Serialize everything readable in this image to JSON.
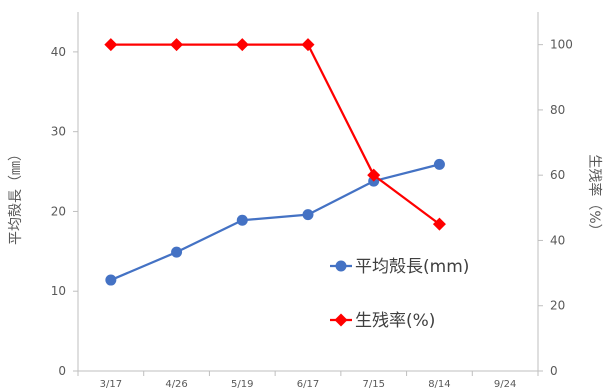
{
  "chart_data": {
    "type": "line",
    "categories": [
      "3/17",
      "4/26",
      "5/19",
      "6/17",
      "7/15",
      "8/14",
      "9/24"
    ],
    "y_left": {
      "label": "平均殻長（㎜）",
      "ylim": [
        0,
        45
      ],
      "ticks": [
        0,
        10,
        20,
        30,
        40
      ]
    },
    "y_right": {
      "label": "生残率（%）",
      "ylim": [
        0,
        110
      ],
      "ticks": [
        0,
        20,
        40,
        60,
        80,
        100
      ]
    },
    "series": [
      {
        "name": "平均殻長(mm)",
        "axis": "left",
        "color": "#4472C4",
        "marker": "circle",
        "values": [
          11.4,
          14.9,
          18.9,
          19.6,
          23.8,
          25.9,
          null
        ]
      },
      {
        "name": "生残率(%)",
        "axis": "right",
        "color": "#FF0000",
        "marker": "diamond",
        "values": [
          100,
          100,
          100,
          100,
          60,
          45,
          null
        ]
      }
    ],
    "grid": false,
    "legend_position": "inside-bottom-right"
  }
}
